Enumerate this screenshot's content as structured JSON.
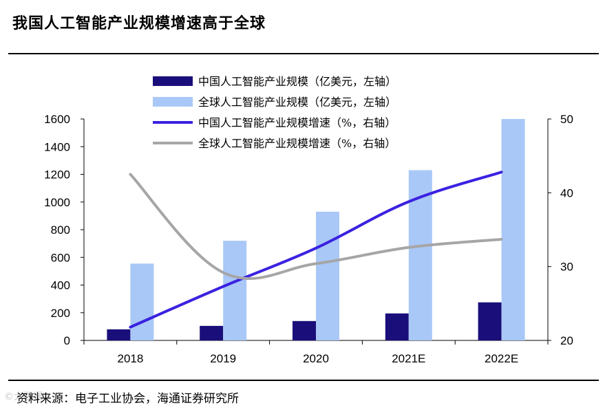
{
  "title": "我国人工智能产业规模增速高于全球",
  "source": "资料来源：电子工业协会，海通证券研究所",
  "watermark": "©大数据",
  "chart_data": {
    "type": "bar",
    "categories": [
      "2018",
      "2019",
      "2020",
      "2021E",
      "2022E"
    ],
    "series": [
      {
        "name": "中国人工智能产业规模（亿美元，左轴）",
        "kind": "bar",
        "axis": "left",
        "color": "#1a0f7a",
        "values": [
          80,
          105,
          140,
          195,
          275
        ]
      },
      {
        "name": "全球人工智能产业规模（亿美元，左轴）",
        "kind": "bar",
        "axis": "left",
        "color": "#a9c8f7",
        "values": [
          555,
          720,
          930,
          1230,
          1600
        ]
      },
      {
        "name": "中国人工智能产业规模增速（%，右轴）",
        "kind": "line",
        "axis": "right",
        "color": "#3a22e0",
        "values": [
          21.8,
          27.3,
          32.5,
          38.8,
          42.8
        ]
      },
      {
        "name": "全球人工智能产业规模增速（%，右轴）",
        "kind": "line",
        "axis": "right",
        "color": "#a6a6a6",
        "values": [
          42.5,
          29.2,
          30.4,
          32.6,
          33.7
        ]
      }
    ],
    "left_axis": {
      "ylim": [
        0,
        1600
      ],
      "ticks": [
        "0",
        "200",
        "400",
        "600",
        "800",
        "1000",
        "1200",
        "1400",
        "1600"
      ]
    },
    "right_axis": {
      "ylim": [
        20,
        50
      ],
      "ticks": [
        "20",
        "30",
        "40",
        "50"
      ]
    },
    "legend_position": "top-center"
  }
}
